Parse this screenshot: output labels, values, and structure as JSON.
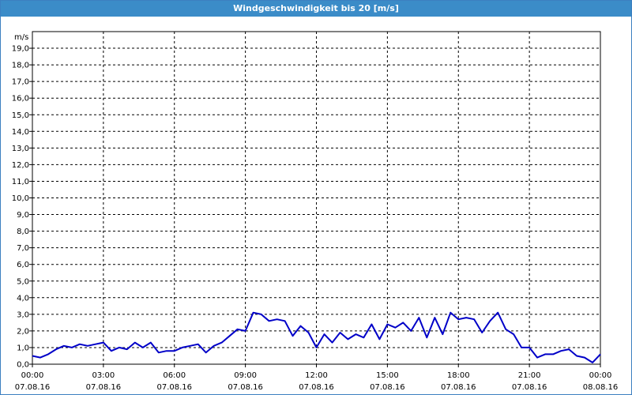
{
  "title": "Windgeschwindigkeit bis 20 [m/s]",
  "chart_data": {
    "type": "line",
    "title": "Windgeschwindigkeit bis 20 [m/s]",
    "ylabel": "m/s",
    "xlabel": "",
    "ylim": [
      0,
      20
    ],
    "xlim": [
      "07.08.16 00:00",
      "08.08.16 00:00"
    ],
    "grid": true,
    "y_ticks": [
      "0,0",
      "1,0",
      "2,0",
      "3,0",
      "4,0",
      "5,0",
      "6,0",
      "7,0",
      "8,0",
      "9,0",
      "10,0",
      "11,0",
      "12,0",
      "13,0",
      "14,0",
      "15,0",
      "16,0",
      "17,0",
      "18,0",
      "19,0"
    ],
    "x_ticks": [
      {
        "time": "00:00",
        "date": "07.08.16"
      },
      {
        "time": "03:00",
        "date": "07.08.16"
      },
      {
        "time": "06:00",
        "date": "07.08.16"
      },
      {
        "time": "09:00",
        "date": "07.08.16"
      },
      {
        "time": "12:00",
        "date": "07.08.16"
      },
      {
        "time": "15:00",
        "date": "07.08.16"
      },
      {
        "time": "18:00",
        "date": "07.08.16"
      },
      {
        "time": "21:00",
        "date": "07.08.16"
      },
      {
        "time": "00:00",
        "date": "08.08.16"
      }
    ],
    "series": [
      {
        "color": "#0000c8",
        "x": [
          "00:00",
          "00:20",
          "00:40",
          "01:00",
          "01:20",
          "01:40",
          "02:00",
          "02:20",
          "02:40",
          "03:00",
          "03:20",
          "03:40",
          "04:00",
          "04:20",
          "04:40",
          "05:00",
          "05:20",
          "05:40",
          "06:00",
          "06:20",
          "06:40",
          "07:00",
          "07:20",
          "07:40",
          "08:00",
          "08:20",
          "08:40",
          "09:00",
          "09:20",
          "09:40",
          "10:00",
          "10:20",
          "10:40",
          "11:00",
          "11:20",
          "11:40",
          "12:00",
          "12:20",
          "12:40",
          "13:00",
          "13:20",
          "13:40",
          "14:00",
          "14:20",
          "14:40",
          "15:00",
          "15:20",
          "15:40",
          "16:00",
          "16:20",
          "16:40",
          "17:00",
          "17:20",
          "17:40",
          "18:00",
          "18:20",
          "18:40",
          "19:00",
          "19:20",
          "19:40",
          "20:00",
          "20:20",
          "20:40",
          "21:00",
          "21:20",
          "21:40",
          "22:00",
          "22:20",
          "22:40",
          "23:00",
          "23:20",
          "23:40",
          "24:00"
        ],
        "values": [
          0.5,
          0.4,
          0.6,
          0.9,
          1.1,
          1.0,
          1.2,
          1.1,
          1.2,
          1.3,
          0.8,
          1.0,
          0.9,
          1.3,
          1.0,
          1.3,
          0.7,
          0.8,
          0.8,
          1.0,
          1.1,
          1.2,
          0.7,
          1.1,
          1.3,
          1.7,
          2.1,
          2.0,
          3.1,
          3.0,
          2.6,
          2.7,
          2.6,
          1.7,
          2.3,
          1.9,
          1.0,
          1.8,
          1.3,
          1.9,
          1.5,
          1.8,
          1.6,
          2.4,
          1.5,
          2.4,
          2.2,
          2.5,
          2.0,
          2.8,
          1.6,
          2.8,
          1.8,
          3.1,
          2.7,
          2.8,
          2.7,
          1.9,
          2.6,
          3.1,
          2.1,
          1.8,
          1.0,
          1.0,
          0.4,
          0.6,
          0.6,
          0.8,
          0.9,
          0.5,
          0.4,
          0.1,
          0.6
        ]
      }
    ]
  }
}
